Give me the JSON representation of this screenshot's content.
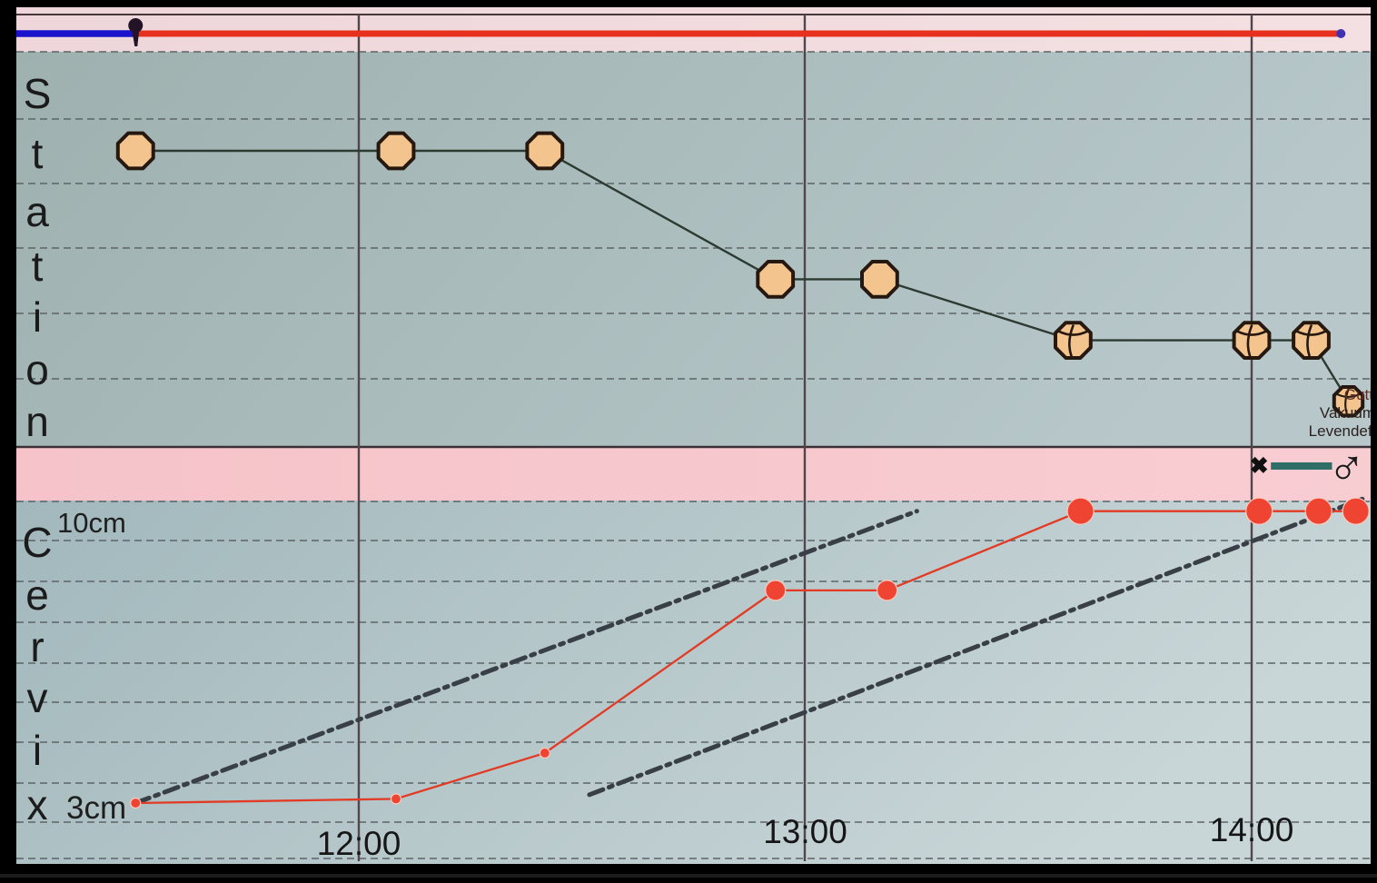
{
  "colors": {
    "bezel": "#000000",
    "strip_pink_top": "#f0d8db",
    "strip_pink_divider": "#f6c5cb",
    "panel_teal": "#a8bbbc",
    "timeline_blue": "#1b12cc",
    "timeline_red": "#e7301d",
    "data_red": "#ee3a28",
    "head_marker_fill": "#f3c48e",
    "reference_line": "#393f46",
    "delivery_teal": "#2f6e66"
  },
  "station_panel": {
    "label": "Station"
  },
  "cervix_panel": {
    "label": "Cervix",
    "max_label": "10cm",
    "min_label": "3cm"
  },
  "time_axis": {
    "ticks": [
      {
        "label": "12:00"
      },
      {
        "label": "13:00"
      },
      {
        "label": "14:00"
      }
    ]
  },
  "annotations": {
    "baby": [
      "Gutt",
      "Vakuum",
      "Levendefø"
    ]
  },
  "timeline": {
    "pin_time": "11:30",
    "end_time": "14:12"
  },
  "delivery": {
    "cross": "✖",
    "cross_time": "14:01",
    "symbol": "♂",
    "symbol_time": "14:13"
  },
  "chart_data": [
    {
      "type": "line",
      "name": "fetal-station-descent",
      "ylabel": "Station",
      "x_ticks": [
        "12:00",
        "13:00",
        "14:00"
      ],
      "grid": "dashed-horizontal",
      "points": [
        {
          "time": "11:30",
          "level": 0,
          "marker": "head-plain"
        },
        {
          "time": "12:05",
          "level": 0,
          "marker": "head-plain"
        },
        {
          "time": "12:25",
          "level": 0,
          "marker": "head-plain"
        },
        {
          "time": "12:56",
          "level": 2,
          "marker": "head-plain"
        },
        {
          "time": "13:10",
          "level": 2,
          "marker": "head-plain"
        },
        {
          "time": "13:36",
          "level": 2.95,
          "marker": "head-sutures"
        },
        {
          "time": "14:00",
          "level": 2.95,
          "marker": "head-sutures"
        },
        {
          "time": "14:08",
          "level": 2.95,
          "marker": "head-sutures"
        },
        {
          "time": "14:13",
          "level": 3.9,
          "marker": "head-sutures-small"
        }
      ]
    },
    {
      "type": "line",
      "name": "cervical-dilation",
      "ylabel": "Cervix",
      "y_tick_labels": [
        "10cm",
        "3cm"
      ],
      "ylim_cm": [
        3,
        10
      ],
      "x_ticks": [
        "12:00",
        "13:00",
        "14:00"
      ],
      "points": [
        {
          "time": "11:30",
          "cm": 3.0,
          "dot": "small"
        },
        {
          "time": "12:05",
          "cm": 3.1,
          "dot": "small"
        },
        {
          "time": "12:25",
          "cm": 4.2,
          "dot": "small"
        },
        {
          "time": "12:56",
          "cm": 8.1,
          "dot": "medium"
        },
        {
          "time": "13:11",
          "cm": 8.1,
          "dot": "medium"
        },
        {
          "time": "13:37",
          "cm": 10.0,
          "dot": "large"
        },
        {
          "time": "14:01",
          "cm": 10.0,
          "dot": "large"
        },
        {
          "time": "14:09",
          "cm": 10.0,
          "dot": "large"
        },
        {
          "time": "14:14",
          "cm": 10.0,
          "dot": "large"
        }
      ],
      "reference_lines": [
        {
          "name": "alert-line",
          "style": "dash-dot",
          "from": {
            "time": "11:30",
            "cm": 3.0
          },
          "to": {
            "time": "13:15",
            "cm": 10.0
          }
        },
        {
          "name": "action-line",
          "style": "dash-dot",
          "from": {
            "time": "12:31",
            "cm": 3.2
          },
          "to": {
            "time": "14:15",
            "cm": 10.3
          }
        }
      ]
    }
  ]
}
